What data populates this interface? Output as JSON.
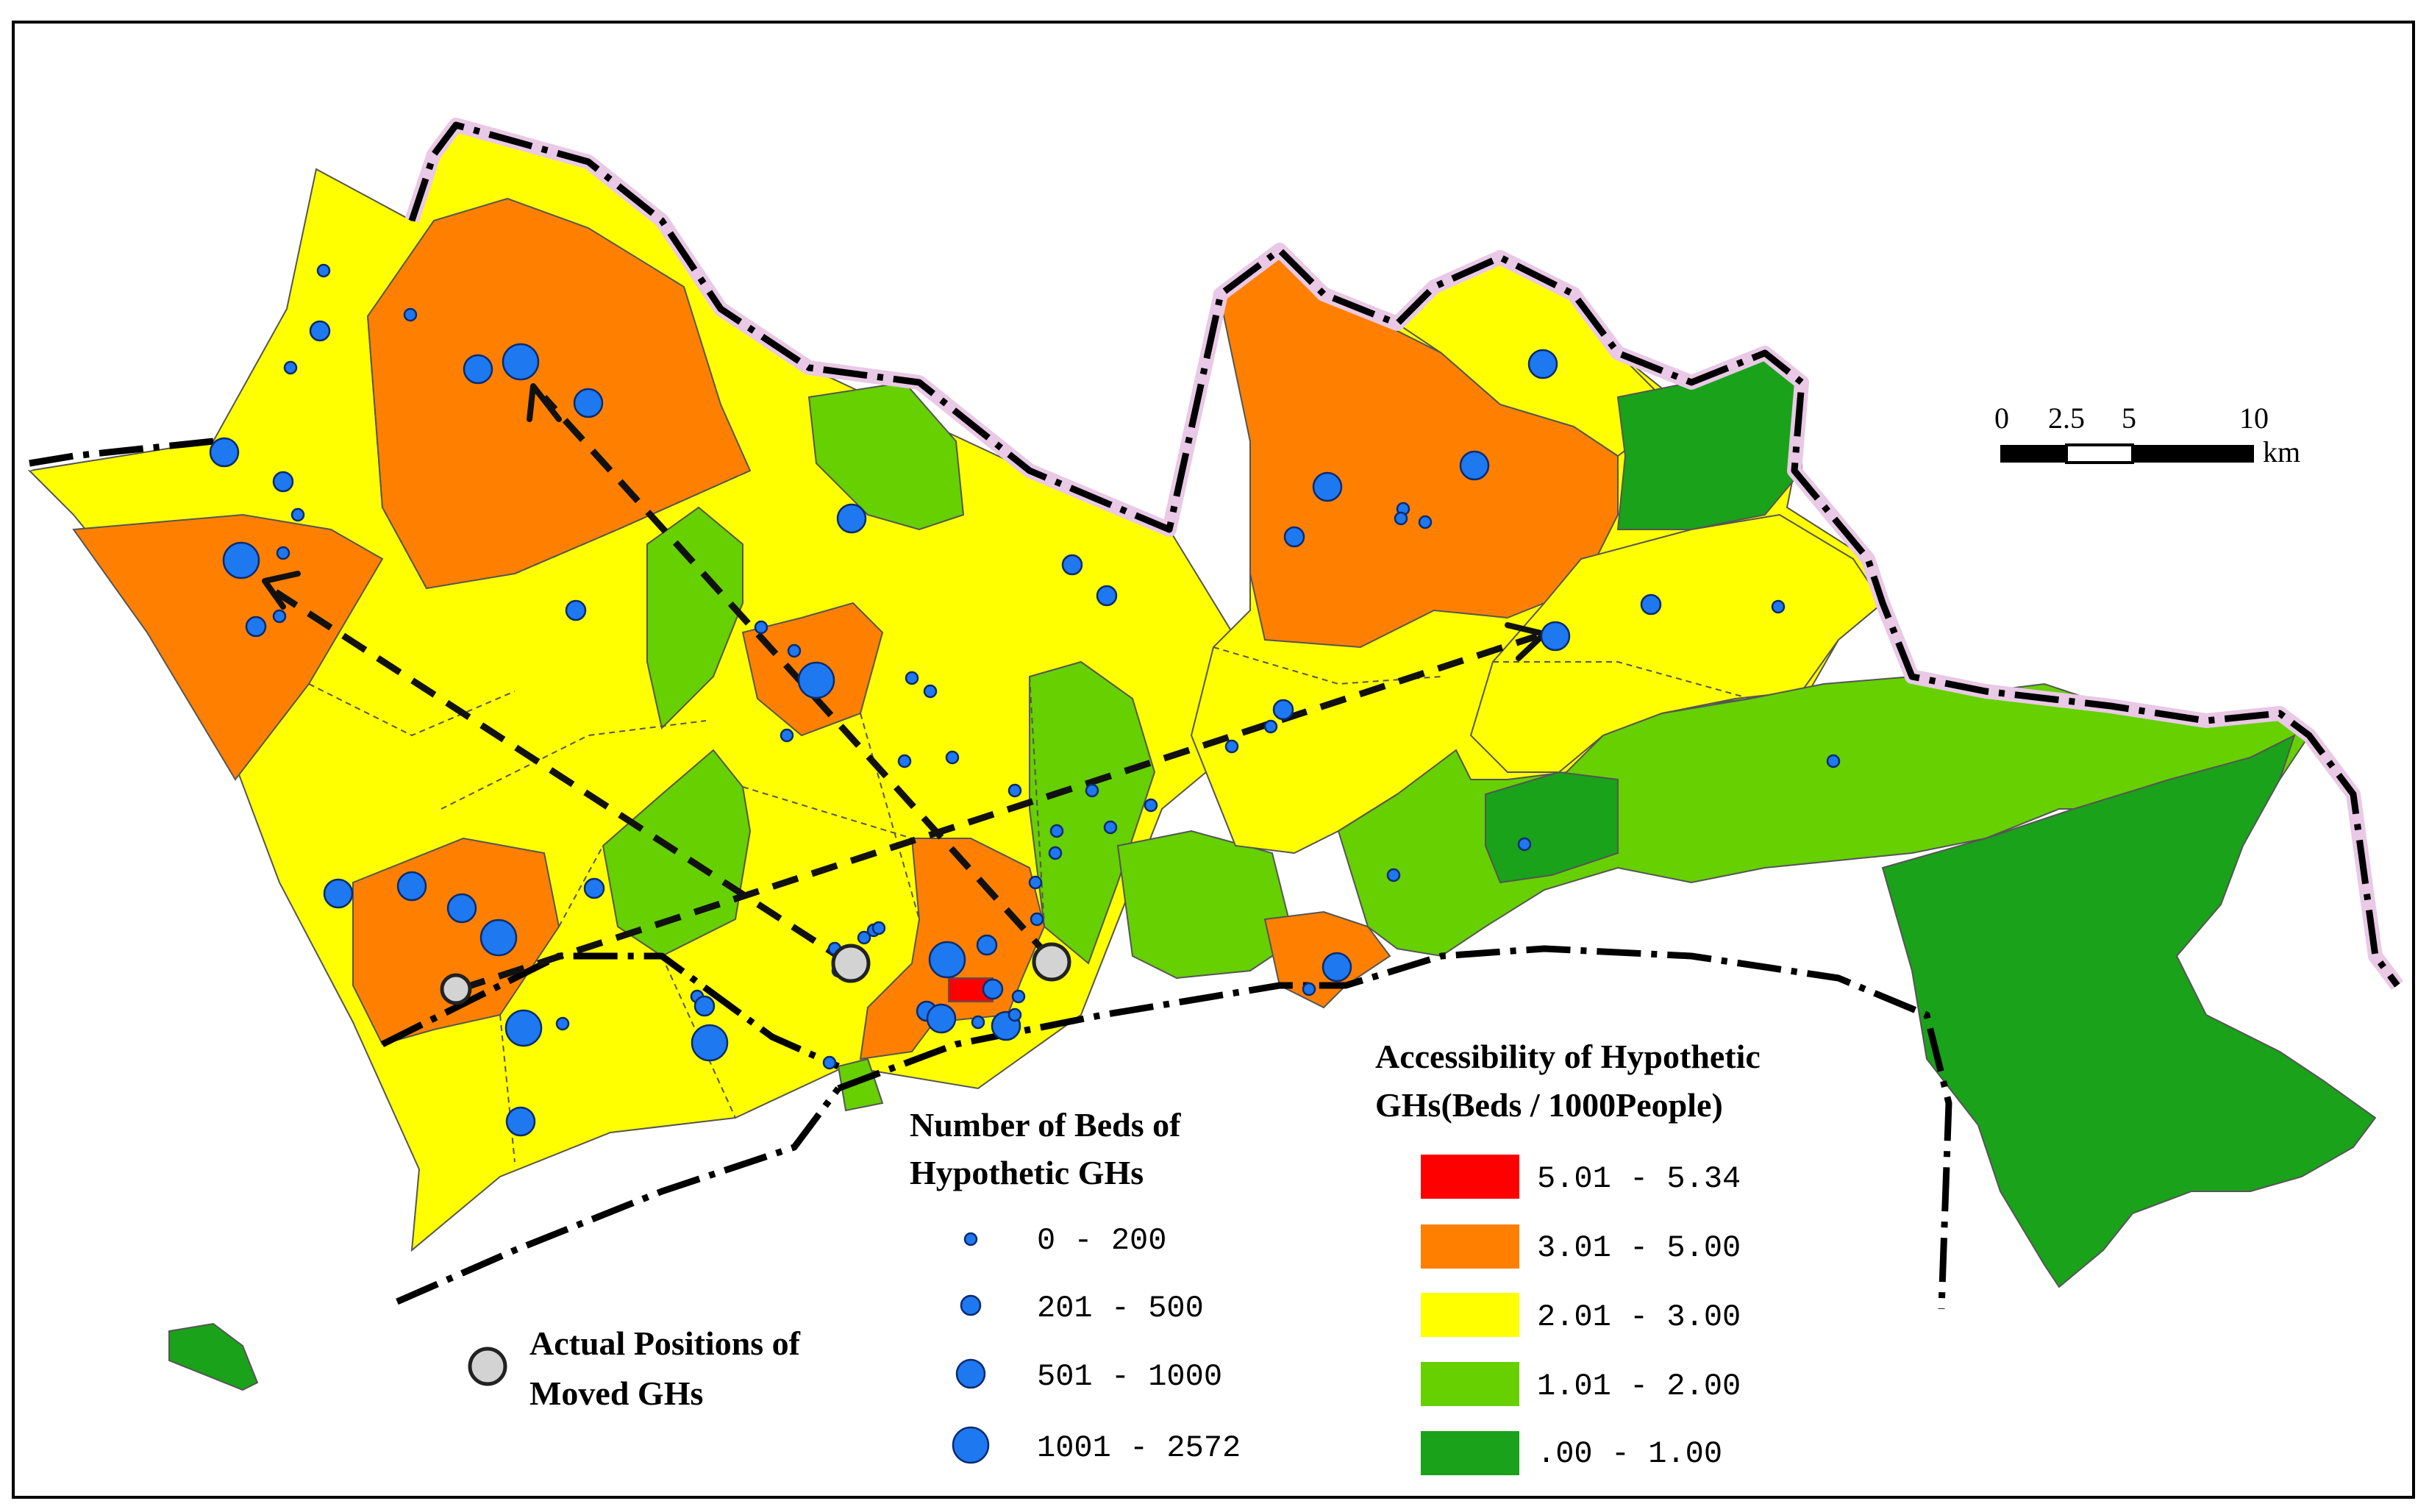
{
  "colors": {
    "class_5": "#ff0000",
    "class_4": "#ff8000",
    "class_3": "#ffff00",
    "class_2": "#66d000",
    "class_1": "#1aa21a",
    "gh_marker": "#1e78f0",
    "moved_gh": "#d3d3d3"
  },
  "scale_bar": {
    "ticks": [
      "0",
      "2.5",
      "5",
      "10"
    ],
    "unit": "km"
  },
  "beds_legend": {
    "title_line1": "Number of Beds of",
    "title_line2": "Hypothetic GHs",
    "classes": [
      {
        "label": "0 - 200",
        "size": 1
      },
      {
        "label": "201 - 500",
        "size": 2
      },
      {
        "label": "501 - 1000",
        "size": 3
      },
      {
        "label": "1001 - 2572",
        "size": 4
      }
    ]
  },
  "moved_legend": {
    "line1": "Actual Positions of",
    "line2": "Moved GHs"
  },
  "accessibility_legend": {
    "title_line1": "Accessibility of Hypothetic",
    "title_line2": "GHs(Beds / 1000People)",
    "classes": [
      {
        "label": "5.01 - 5.34",
        "color": "#ff0000"
      },
      {
        "label": "3.01 - 5.00",
        "color": "#ff8000"
      },
      {
        "label": "2.01 - 3.00",
        "color": "#ffff00"
      },
      {
        "label": "1.01 - 2.00",
        "color": "#66d000"
      },
      {
        "label": ".00 - 1.00",
        "color": "#1aa21a"
      }
    ]
  }
}
